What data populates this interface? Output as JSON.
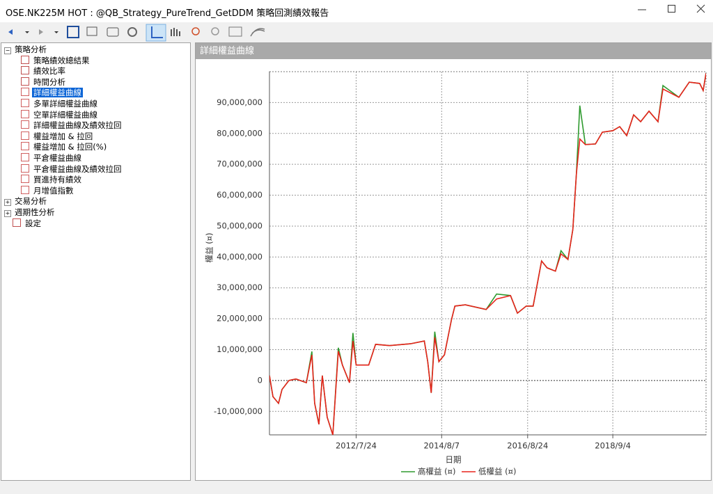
{
  "window": {
    "title": "OSE.NK225M HOT : @QB_Strategy_PureTrend_GetDDM 策略回測績效報告"
  },
  "tree": {
    "root": "策略分析",
    "children": [
      "策略績效總結果",
      "績效比率",
      "時間分析",
      "詳細權益曲線",
      "多單詳細權益曲線",
      "空單詳細權益曲線",
      "詳細權益曲線及績效拉回",
      "權益增加 & 拉回",
      "權益增加 & 拉回(%)",
      "平倉權益曲線",
      "平倉權益曲線及績效拉回",
      "買進持有績效",
      "月增值指數"
    ],
    "selected": 3,
    "others": [
      "交易分析",
      "週期性分析"
    ],
    "settings": "設定"
  },
  "panel": {
    "title": "詳細權益曲線"
  },
  "chart_data": {
    "type": "line",
    "ylabel": "權益 (¤)",
    "xlabel": "日期",
    "x": [
      "2010/7/1",
      "2010/7/31",
      "2010/9/18",
      "2010/10/18",
      "2010/12/17",
      "2011/2/16",
      "2011/5/18",
      "2011/7/5",
      "2011/7/29",
      "2011/9/4",
      "2011/10/4",
      "2011/11/15",
      "2012/1/3",
      "2012/2/20",
      "2012/3/27",
      "2012/5/27",
      "2012/6/26",
      "2012/7/24",
      "2012/11/10",
      "2013/1/9",
      "2013/5/10",
      "2013/11/8",
      "2014/3/9",
      "2014/4/8",
      "2014/5/8",
      "2014/6/8",
      "2014/7/14",
      "2014/8/31",
      "2014/10/31",
      "2014/11/30",
      "2015/3/1",
      "2015/8/29",
      "2015/11/28",
      "2016/3/28",
      "2016/5/27",
      "2016/8/12",
      "2016/10/11",
      "2016/12/23",
      "2017/2/9",
      "2017/4/23",
      "2017/6/10",
      "2017/8/10",
      "2017/9/21",
      "2017/10/22",
      "2017/11/21",
      "2018/1/8",
      "2018/4/6",
      "2018/6/5",
      "2018/9/4",
      "2018/11/3",
      "2019/1/3",
      "2019/3/4",
      "2019/5/4",
      "2019/7/16",
      "2019/10/2",
      "2019/11/14",
      "2020/4/1",
      "2020/6/30",
      "2020/9/29",
      "2020/10/29",
      "2020/11/23"
    ],
    "series": [
      {
        "name": "高權益 (¤)",
        "color": "#2e9a2e",
        "values": [
          1600000,
          -5200000,
          -7400000,
          -2900000,
          0,
          500000,
          -700000,
          9400000,
          -7400000,
          -14200000,
          1600000,
          -11900000,
          -17600000,
          10600000,
          5000000,
          -700000,
          15400000,
          5000000,
          5000000,
          11700000,
          11300000,
          11900000,
          12800000,
          6100000,
          -4000000,
          15800000,
          6100000,
          8300000,
          19600000,
          24100000,
          24500000,
          23000000,
          28000000,
          27500000,
          21800000,
          24100000,
          24100000,
          38700000,
          36500000,
          35400000,
          42000000,
          39200000,
          48900000,
          66900000,
          89000000,
          76400000,
          76600000,
          80400000,
          80900000,
          82200000,
          79300000,
          86000000,
          83800000,
          87200000,
          83800000,
          95500000,
          91700000,
          96600000,
          96200000,
          93900000,
          99500000
        ]
      },
      {
        "name": "低權益 (¤)",
        "color": "#e8231c",
        "values": [
          1600000,
          -5200000,
          -7400000,
          -2900000,
          0,
          500000,
          -700000,
          8300000,
          -7400000,
          -14200000,
          1600000,
          -11900000,
          -17600000,
          9500000,
          5000000,
          -700000,
          12800000,
          5000000,
          5000000,
          11700000,
          11300000,
          11900000,
          12800000,
          6100000,
          -4000000,
          14000000,
          6100000,
          8300000,
          19600000,
          24100000,
          24500000,
          23000000,
          26400000,
          27500000,
          21800000,
          24100000,
          24100000,
          38700000,
          36500000,
          35400000,
          41000000,
          39200000,
          48900000,
          66900000,
          78200000,
          76400000,
          76600000,
          80400000,
          80900000,
          82200000,
          79300000,
          86000000,
          83800000,
          87200000,
          83800000,
          94400000,
          91700000,
          96600000,
          96200000,
          93900000,
          99500000
        ]
      }
    ],
    "xlim": [
      "2010/7/1",
      "2020/11/23"
    ],
    "xticks": [
      "2012/7/24",
      "2014/8/7",
      "2016/8/24",
      "2018/9/4"
    ],
    "ylim": [
      -17600000,
      100000000
    ],
    "yticks": [
      {
        "value": -10000000,
        "label": "-10,000,000"
      },
      0,
      {
        "value": 10000000,
        "label": "10,000,000"
      },
      {
        "value": 20000000,
        "label": "20,000,000"
      },
      {
        "value": 30000000,
        "label": "30,000,000"
      },
      {
        "value": 40000000,
        "label": "40,000,000"
      },
      {
        "value": 50000000,
        "label": "50,000,000"
      },
      {
        "value": 60000000,
        "label": "60,000,000"
      },
      {
        "value": 70000000,
        "label": "70,000,000"
      },
      {
        "value": 80000000,
        "label": "80,000,000"
      },
      {
        "value": 90000000,
        "label": "90,000,000"
      }
    ],
    "grid": true,
    "legend": "bottom"
  }
}
